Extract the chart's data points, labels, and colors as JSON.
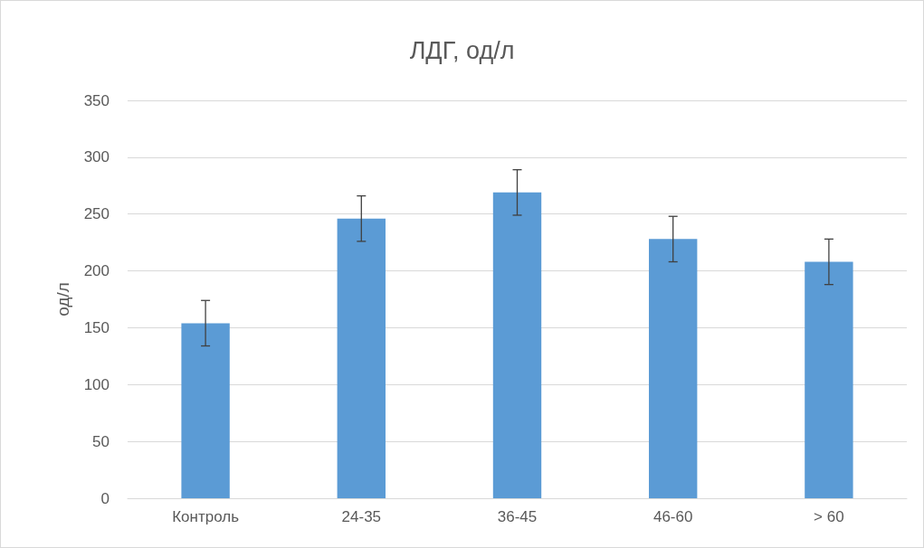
{
  "chart_data": {
    "type": "bar",
    "title": "ЛДГ, од/л",
    "ylabel": "од/л",
    "categories": [
      "Контроль",
      "24-35",
      "36-45",
      "46-60",
      "> 60"
    ],
    "values": [
      154,
      246,
      269,
      228,
      208
    ],
    "errors": [
      20,
      20,
      20,
      20,
      20
    ],
    "color": "#5b9bd5",
    "ylim": [
      0,
      350
    ],
    "yticks": [
      0,
      50,
      100,
      150,
      200,
      250,
      300,
      350
    ],
    "grid": "y"
  }
}
